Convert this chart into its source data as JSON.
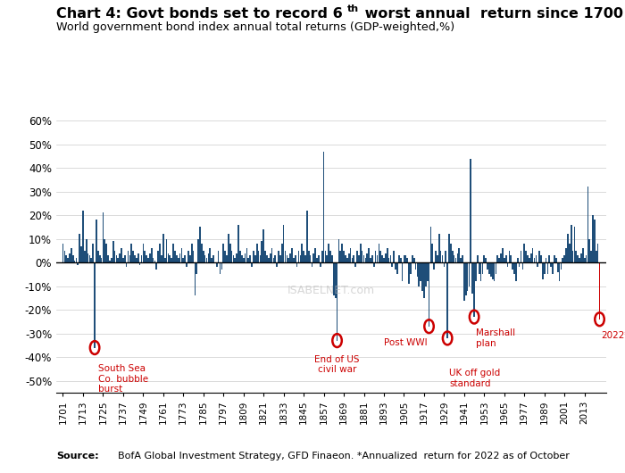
{
  "bar_color": "#1f4e79",
  "highlight_color": "#cc0000",
  "ylabel_ticks": [
    "-50%",
    "-40%",
    "-30%",
    "-20%",
    "-10%",
    "0%",
    "10%",
    "20%",
    "30%",
    "40%",
    "50%",
    "60%"
  ],
  "ytick_vals": [
    -50,
    -40,
    -30,
    -20,
    -10,
    0,
    10,
    20,
    30,
    40,
    50,
    60
  ],
  "xtick_labels": [
    "1701",
    "1713",
    "1725",
    "1737",
    "1749",
    "1761",
    "1773",
    "1785",
    "1797",
    "1809",
    "1821",
    "1833",
    "1845",
    "1857",
    "1869",
    "1881",
    "1893",
    "1905",
    "1917",
    "1929",
    "1941",
    "1953",
    "1965",
    "1977",
    "1989",
    "2001",
    "2013"
  ],
  "annotations": [
    {
      "year": 1720,
      "value": -36,
      "label": "South Sea\nCo. bubble\nburst",
      "ha": "left"
    },
    {
      "year": 1865,
      "value": -33,
      "label": "End of US\ncivil war",
      "ha": "center"
    },
    {
      "year": 1920,
      "value": -27,
      "label": "Post WWI",
      "ha": "right"
    },
    {
      "year": 1931,
      "value": -32,
      "label": "UK off gold\nstandard",
      "ha": "left"
    },
    {
      "year": 1947,
      "value": -23,
      "label": "Marshall\nplan",
      "ha": "left"
    },
    {
      "year": 2022,
      "value": -24,
      "label": "2022*",
      "ha": "left"
    }
  ]
}
